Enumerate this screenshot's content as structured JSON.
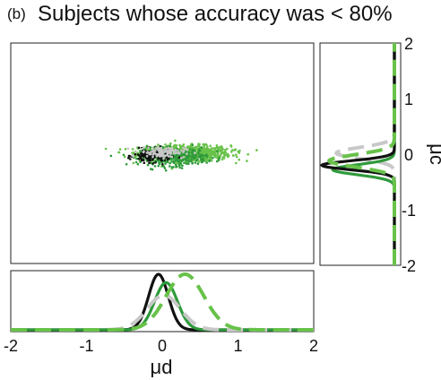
{
  "figure": {
    "panel_label": "(b)",
    "title": "Subjects whose accuracy was < 80%"
  },
  "colors": {
    "black": "#111111",
    "dark_green": "#2f9a3b",
    "light_green": "#68c24a",
    "gray": "#c8c8c8",
    "frame": "#222222"
  },
  "chart_data": [
    {
      "type": "scatter",
      "panel": "joint",
      "xlim": [
        -2,
        2
      ],
      "ylim": [
        -2,
        2
      ],
      "series": [
        {
          "color": "light_green",
          "center": [
            0.3,
            0.0
          ],
          "spread": [
            0.3,
            0.07
          ],
          "count": 900
        },
        {
          "color": "dark_green",
          "center": [
            0.15,
            -0.06
          ],
          "spread": [
            0.22,
            0.08
          ],
          "count": 350
        },
        {
          "color": "black",
          "center": [
            -0.13,
            -0.05
          ],
          "spread": [
            0.12,
            0.06
          ],
          "count": 140
        },
        {
          "color": "gray",
          "center": [
            0.0,
            0.02
          ],
          "spread": [
            0.15,
            0.05
          ],
          "count": 120
        }
      ]
    },
    {
      "type": "line",
      "panel": "marginal-x",
      "xlabel": "μd",
      "xlim": [
        -2,
        2
      ],
      "xticks": [
        "-2",
        "-1",
        "0",
        "1",
        "2"
      ],
      "series": [
        {
          "color": "black",
          "style": "solid",
          "center": -0.05,
          "sd": 0.13,
          "peak": 1.0
        },
        {
          "color": "dark_green",
          "style": "solid",
          "center": 0.05,
          "sd": 0.15,
          "peak": 0.85
        },
        {
          "color": "gray",
          "style": "dashed",
          "center": 0.02,
          "sd": 0.22,
          "peak": 0.62
        },
        {
          "color": "light_green",
          "style": "dashed",
          "center": 0.3,
          "sd": 0.25,
          "peak": 1.0
        }
      ]
    },
    {
      "type": "line",
      "panel": "marginal-y",
      "ylabel": "μc",
      "ylim": [
        -2,
        2
      ],
      "yticks": [
        "2",
        "1",
        "0",
        "-1",
        "-2"
      ],
      "series": [
        {
          "color": "gray",
          "style": "dashed",
          "center": 0.02,
          "sd": 0.1,
          "peak": 0.8
        },
        {
          "color": "dark_green",
          "style": "solid",
          "center": -0.28,
          "sd": 0.09,
          "peak": 0.85
        },
        {
          "color": "black",
          "style": "solid",
          "center": -0.2,
          "sd": 0.08,
          "peak": 1.0
        },
        {
          "color": "light_green",
          "style": "dashed",
          "center": -0.12,
          "sd": 0.11,
          "peak": 0.9
        }
      ]
    }
  ]
}
